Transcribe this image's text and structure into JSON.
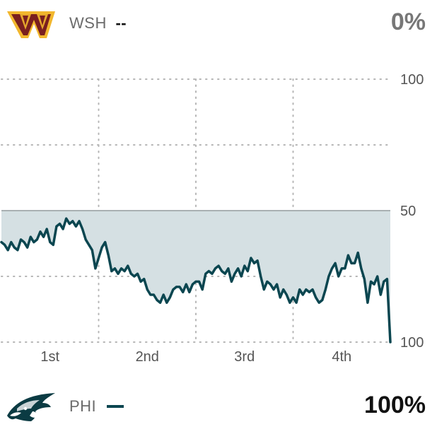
{
  "away": {
    "abbr": "WSH",
    "pct": "0%",
    "dash": "--",
    "color": "#111111",
    "pct_color": "#777777",
    "logo_icon": "commanders-w-logo-icon",
    "logo_colors": {
      "primary": "#7a1f1f",
      "secondary": "#f2b72e"
    }
  },
  "home": {
    "abbr": "PHI",
    "pct": "100%",
    "color": "#0b4650",
    "pct_color": "#111111",
    "logo_icon": "eagles-head-logo-icon"
  },
  "chart_data": {
    "type": "area",
    "x_categories": [
      "1st",
      "2nd",
      "3rd",
      "4th"
    ],
    "y_ticks": [
      "100",
      "50",
      "100"
    ],
    "y_tick_values": [
      100,
      50,
      0
    ],
    "ylim": [
      0,
      100
    ],
    "xlim": [
      0,
      60
    ],
    "baseline": 50,
    "grid": true,
    "line_color": "#0b4650",
    "fill_color": "#d5e0e3",
    "series": [
      {
        "x": [
          0,
          0.5,
          1,
          1.5,
          2,
          2.5,
          3,
          3.5,
          4,
          4.5,
          5,
          5.5,
          6,
          6.5,
          7,
          7.5,
          8,
          8.5,
          9,
          9.5,
          10,
          10.5,
          11,
          11.5,
          12,
          12.5,
          13,
          13.5,
          14,
          14.5,
          15,
          15.5,
          16,
          16.5,
          17,
          17.5,
          18,
          18.5,
          19,
          19.5,
          20,
          20.5,
          21,
          21.5,
          22,
          22.5,
          23,
          23.5,
          24,
          24.5,
          25,
          25.5,
          26,
          26.5,
          27,
          27.5,
          28,
          28.5,
          29,
          29.5,
          30,
          30.5,
          31,
          31.5,
          32,
          32.5,
          33,
          33.5,
          34,
          34.5,
          35,
          35.5,
          36,
          36.5,
          37,
          37.5,
          38,
          38.5,
          39,
          39.5,
          40,
          40.5,
          41,
          41.5,
          42,
          42.5,
          43,
          43.5,
          44,
          44.5,
          45,
          45.5,
          46,
          46.5,
          47,
          47.5,
          48,
          48.5,
          49,
          49.5,
          50,
          50.5,
          51,
          51.5,
          52,
          52.5,
          53,
          53.5,
          54,
          54.5,
          55,
          55.5,
          56,
          56.5,
          57,
          57.5,
          58,
          58.5,
          59,
          59.5,
          60
        ],
        "y": [
          38,
          37,
          35,
          38,
          36,
          35,
          39,
          38,
          36,
          40,
          38,
          39,
          42,
          40,
          43,
          38,
          37,
          44,
          45,
          43,
          47,
          45,
          46,
          44,
          46,
          43,
          39,
          37,
          35,
          28,
          32,
          36,
          38,
          33,
          27,
          28,
          26,
          28,
          27,
          29,
          26,
          25,
          26,
          23,
          24,
          20,
          18,
          18,
          16,
          15,
          18,
          15,
          17,
          20,
          21,
          21,
          19,
          22,
          19,
          22,
          23,
          23,
          20,
          26,
          27,
          26,
          28,
          29,
          27,
          26,
          28,
          23,
          26,
          28,
          25,
          29,
          27,
          32,
          30,
          31,
          25,
          20,
          23,
          22,
          20,
          22,
          17,
          20,
          18,
          15,
          17,
          15,
          20,
          18,
          20,
          19,
          20,
          17,
          15,
          16,
          20,
          25,
          28,
          30,
          25,
          28,
          28,
          33,
          30,
          30,
          34,
          28,
          24,
          15,
          23,
          22,
          25,
          18,
          23,
          24,
          0
        ]
      }
    ]
  }
}
